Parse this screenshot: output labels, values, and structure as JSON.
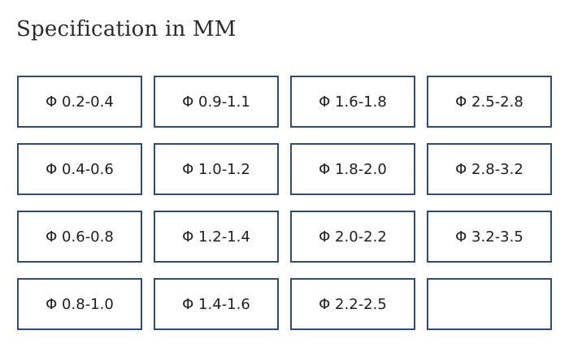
{
  "title": "Specification in MM",
  "specs": [
    [
      "Φ 0.2-0.4",
      "Φ 0.9-1.1",
      "Φ 1.6-1.8",
      "Φ 2.5-2.8"
    ],
    [
      "Φ 0.4-0.6",
      "Φ 1.0-1.2",
      "Φ 1.8-2.0",
      "Φ 2.8-3.2"
    ],
    [
      "Φ 0.6-0.8",
      "Φ 1.2-1.4",
      "Φ 2.0-2.2",
      "Φ 3.2-3.5"
    ],
    [
      "Φ 0.8-1.0",
      "Φ 1.4-1.6",
      "Φ 2.2-2.5",
      ""
    ]
  ],
  "colors": {
    "border": "#2f4b7c",
    "text": "#1f1f1f"
  }
}
